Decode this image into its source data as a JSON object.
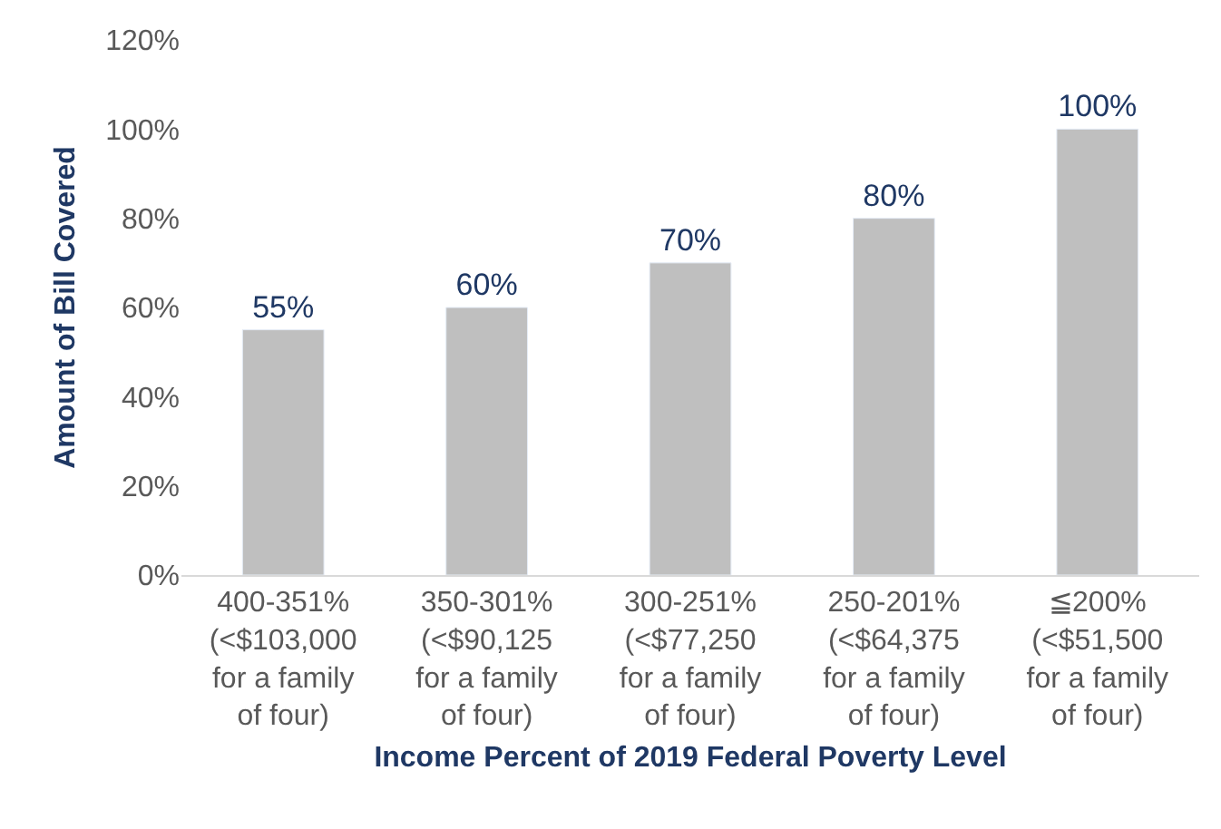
{
  "chart_data": {
    "type": "bar",
    "xlabel": "Income Percent of 2019 Federal Poverty Level",
    "ylabel": "Amount of Bill Covered",
    "categories": [
      "400-351%\n(<$103,000\nfor a family\nof four)",
      "350-301%\n(<$90,125\nfor a family\nof four)",
      "300-251%\n(<$77,250\nfor a family\nof four)",
      "250-201%\n(<$64,375\nfor a family\nof four)",
      "≦200%\n(<$51,500\nfor a family\nof four)"
    ],
    "values": [
      55,
      60,
      70,
      80,
      100
    ],
    "value_labels": [
      "55%",
      "60%",
      "70%",
      "80%",
      "100%"
    ],
    "color": "#bfbfbf",
    "ylim": [
      0,
      120
    ],
    "yticks": [
      {
        "value": 0,
        "label": "0%"
      },
      {
        "value": 20,
        "label": "20%"
      },
      {
        "value": 40,
        "label": "40%"
      },
      {
        "value": 60,
        "label": "60%"
      },
      {
        "value": 80,
        "label": "80%"
      },
      {
        "value": 100,
        "label": "100%"
      },
      {
        "value": 120,
        "label": "120%"
      }
    ],
    "legend": false
  }
}
